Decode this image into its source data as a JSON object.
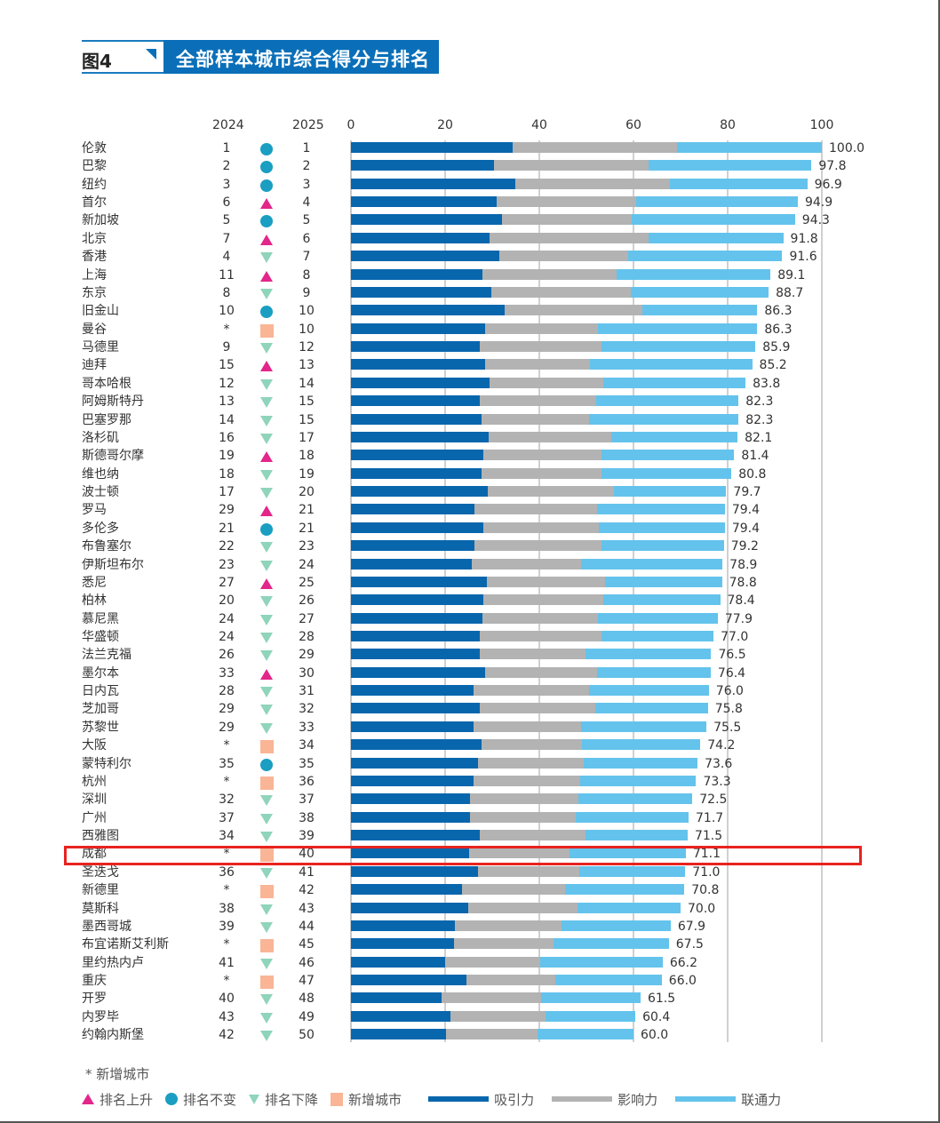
{
  "figure": {
    "label": "图4",
    "title": "全部样本城市综合得分与排名"
  },
  "columns": {
    "y2024": "2024",
    "y2025": "2025"
  },
  "footnote": "* 新增城市",
  "legend": {
    "up": "排名上升",
    "same": "排名不变",
    "down": "排名下降",
    "new": "新增城市",
    "attract": "吸引力",
    "influence": "影响力",
    "connect": "联通力"
  },
  "colors": {
    "attract": "#0866ad",
    "influence": "#b3b3b3",
    "connect": "#63c3ec",
    "up": "#e2268a",
    "same": "#1a9ec2",
    "down": "#8fd4bb",
    "new": "#f9b596",
    "highlight": "#e8231f",
    "header": "#0a6fb8"
  },
  "highlighted_city": "成都",
  "chart_data": {
    "type": "bar",
    "orientation": "horizontal",
    "stacked": true,
    "title": "全部样本城市综合得分与排名",
    "xlim": [
      0,
      100
    ],
    "xticks": [
      0,
      20,
      40,
      60,
      80,
      100
    ],
    "grid": true,
    "legend_position": "bottom",
    "series_names": [
      "吸引力",
      "影响力",
      "联通力"
    ],
    "categories": [
      "伦敦",
      "巴黎",
      "纽约",
      "首尔",
      "新加坡",
      "北京",
      "香港",
      "上海",
      "东京",
      "旧金山",
      "曼谷",
      "马德里",
      "迪拜",
      "哥本哈根",
      "阿姆斯特丹",
      "巴塞罗那",
      "洛杉矶",
      "斯德哥尔摩",
      "维也纳",
      "波士顿",
      "罗马",
      "多伦多",
      "布鲁塞尔",
      "伊斯坦布尔",
      "悉尼",
      "柏林",
      "慕尼黑",
      "华盛顿",
      "法兰克福",
      "墨尔本",
      "日内瓦",
      "芝加哥",
      "苏黎世",
      "大阪",
      "蒙特利尔",
      "杭州",
      "深圳",
      "广州",
      "西雅图",
      "成都",
      "圣迭戈",
      "新德里",
      "莫斯科",
      "墨西哥城",
      "布宜诺斯艾利斯",
      "里约热内卢",
      "重庆",
      "开罗",
      "内罗毕",
      "约翰内斯堡"
    ],
    "rank_2024": [
      "1",
      "2",
      "3",
      "6",
      "5",
      "7",
      "4",
      "11",
      "8",
      "10",
      "*",
      "9",
      "15",
      "12",
      "13",
      "14",
      "16",
      "19",
      "18",
      "17",
      "29",
      "21",
      "22",
      "23",
      "27",
      "20",
      "24",
      "24",
      "26",
      "33",
      "28",
      "29",
      "29",
      "*",
      "35",
      "*",
      "32",
      "37",
      "34",
      "*",
      "36",
      "*",
      "38",
      "39",
      "*",
      "41",
      "*",
      "40",
      "43",
      "42"
    ],
    "rank_2025": [
      "1",
      "2",
      "3",
      "4",
      "5",
      "6",
      "7",
      "8",
      "9",
      "10",
      "10",
      "12",
      "13",
      "14",
      "15",
      "15",
      "17",
      "18",
      "19",
      "20",
      "21",
      "21",
      "23",
      "24",
      "25",
      "26",
      "27",
      "28",
      "29",
      "30",
      "31",
      "32",
      "33",
      "34",
      "35",
      "36",
      "37",
      "38",
      "39",
      "40",
      "41",
      "42",
      "43",
      "44",
      "45",
      "46",
      "47",
      "48",
      "49",
      "50"
    ],
    "change": [
      "same",
      "same",
      "same",
      "up",
      "same",
      "up",
      "down",
      "up",
      "down",
      "same",
      "new",
      "down",
      "up",
      "down",
      "down",
      "down",
      "down",
      "up",
      "down",
      "down",
      "up",
      "same",
      "down",
      "down",
      "up",
      "down",
      "down",
      "down",
      "down",
      "up",
      "down",
      "down",
      "down",
      "new",
      "same",
      "new",
      "down",
      "down",
      "down",
      "new",
      "down",
      "new",
      "down",
      "down",
      "new",
      "down",
      "new",
      "down",
      "down",
      "down"
    ],
    "series": [
      {
        "name": "吸引力",
        "values": [
          34.3,
          30.4,
          34.9,
          31.0,
          32.1,
          29.4,
          31.6,
          28.0,
          29.9,
          32.6,
          28.4,
          27.4,
          28.4,
          29.5,
          27.4,
          27.7,
          29.2,
          28.1,
          27.7,
          29.1,
          26.3,
          28.1,
          26.3,
          25.7,
          28.9,
          28.1,
          27.9,
          27.4,
          27.4,
          28.4,
          26.0,
          27.4,
          26.1,
          27.7,
          27.0,
          26.0,
          25.3,
          25.3,
          27.4,
          25.1,
          27.0,
          23.6,
          24.9,
          22.1,
          21.9,
          20.0,
          24.5,
          19.3,
          21.2,
          20.2
        ]
      },
      {
        "name": "影响力",
        "values": [
          35.0,
          32.9,
          32.8,
          29.5,
          27.5,
          33.8,
          27.2,
          28.5,
          29.5,
          29.2,
          24.0,
          25.8,
          22.4,
          24.1,
          24.7,
          22.9,
          26.1,
          25.1,
          25.5,
          26.8,
          26.0,
          24.6,
          27.0,
          23.1,
          25.1,
          25.5,
          24.5,
          25.8,
          22.5,
          23.9,
          24.6,
          24.5,
          22.8,
          21.4,
          22.4,
          22.7,
          23.0,
          22.4,
          22.4,
          21.4,
          21.5,
          21.9,
          23.2,
          22.7,
          21.1,
          20.2,
          18.9,
          21.0,
          20.1,
          19.4
        ]
      },
      {
        "name": "联通力",
        "values": [
          30.7,
          34.5,
          29.2,
          34.4,
          34.7,
          28.6,
          32.8,
          32.6,
          29.3,
          24.5,
          33.9,
          32.7,
          34.4,
          30.2,
          30.2,
          31.7,
          26.8,
          28.2,
          27.6,
          23.8,
          27.1,
          26.7,
          25.9,
          30.1,
          24.8,
          24.8,
          25.5,
          23.8,
          26.6,
          24.1,
          25.4,
          23.9,
          26.6,
          25.1,
          24.2,
          24.6,
          24.2,
          24.0,
          21.7,
          24.6,
          22.5,
          25.3,
          21.9,
          23.1,
          24.5,
          26.0,
          22.6,
          21.2,
          19.1,
          20.4
        ]
      }
    ],
    "totals": [
      "100.0",
      "97.8",
      "96.9",
      "94.9",
      "94.3",
      "91.8",
      "91.6",
      "89.1",
      "88.7",
      "86.3",
      "86.3",
      "85.9",
      "85.2",
      "83.8",
      "82.3",
      "82.3",
      "82.1",
      "81.4",
      "80.8",
      "79.7",
      "79.4",
      "79.4",
      "79.2",
      "78.9",
      "78.8",
      "78.4",
      "77.9",
      "77.0",
      "76.5",
      "76.4",
      "76.0",
      "75.8",
      "75.5",
      "74.2",
      "73.6",
      "73.3",
      "72.5",
      "71.7",
      "71.5",
      "71.1",
      "71.0",
      "70.8",
      "70.0",
      "67.9",
      "67.5",
      "66.2",
      "66.0",
      "61.5",
      "60.4",
      "60.0"
    ],
    "annotations": [
      "* 新增城市"
    ]
  }
}
